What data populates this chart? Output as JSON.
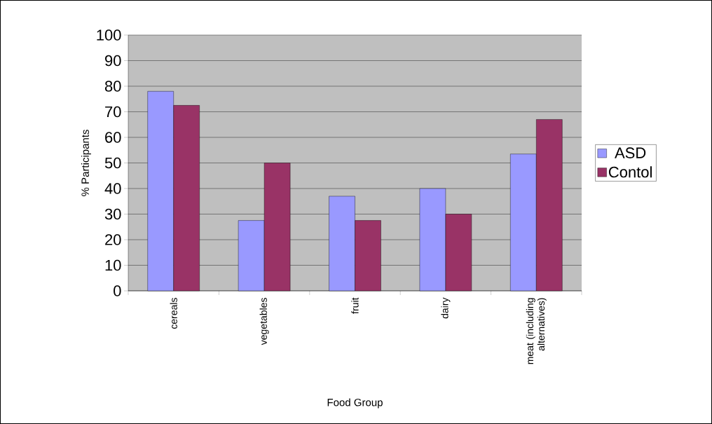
{
  "chart_data": {
    "type": "bar",
    "xlabel": "Food Group",
    "ylabel": "% Participants",
    "categories": [
      "cereals",
      "vegetables",
      "fruit",
      "dairy",
      "meat (including alternatives)"
    ],
    "series": [
      {
        "name": "ASD",
        "color": "#9999ff",
        "values": [
          78,
          27.5,
          37,
          40,
          53.5
        ]
      },
      {
        "name": "Contol",
        "color": "#993366",
        "values": [
          72.5,
          50,
          27.5,
          30,
          67
        ]
      }
    ],
    "ylim": [
      0,
      100
    ],
    "yticks": [
      0,
      10,
      20,
      30,
      40,
      50,
      60,
      70,
      80,
      90,
      100
    ],
    "grid": "y",
    "legend": "right"
  }
}
